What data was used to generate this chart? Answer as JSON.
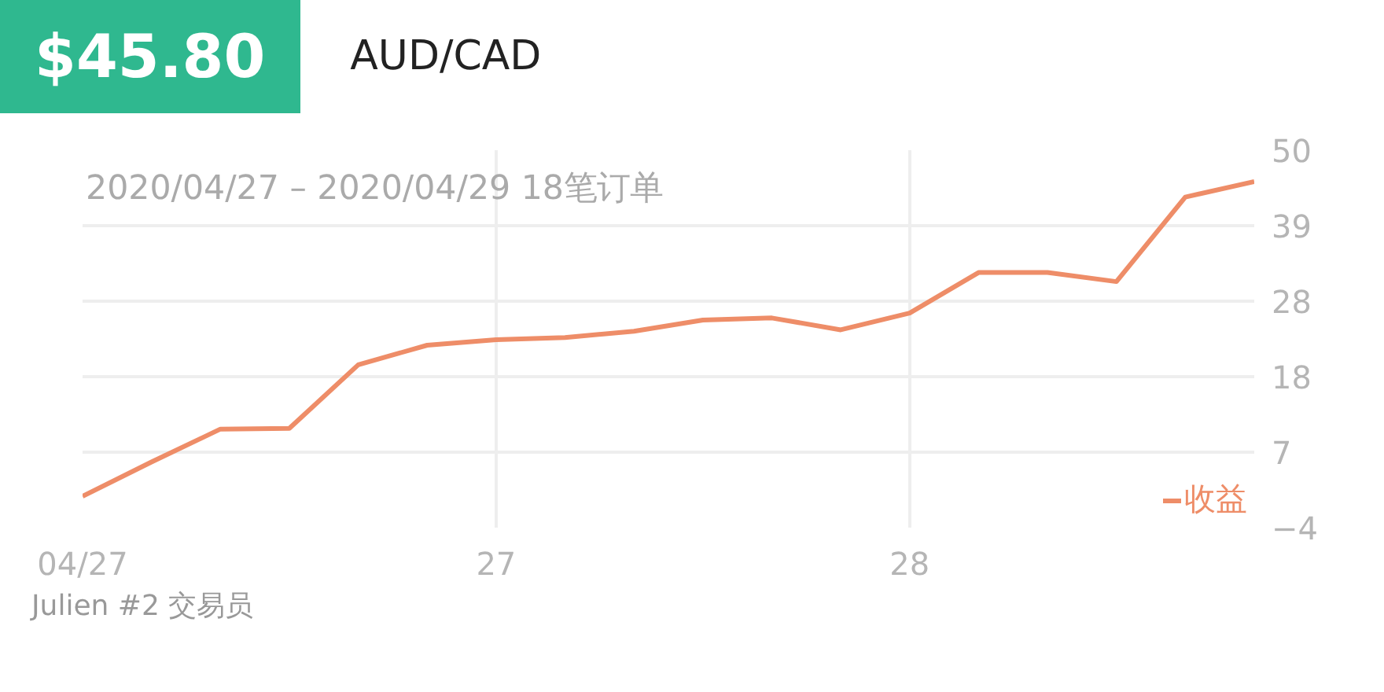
{
  "chart_data": {
    "type": "line",
    "title": "$45.80",
    "subtitle": "AUD/CAD",
    "annotations": [
      "2020/04/27 – 2020/04/29 18笔订单",
      "Julien #2 交易员"
    ],
    "categories": [
      "04/27",
      null,
      null,
      null,
      null,
      null,
      "27",
      null,
      null,
      null,
      null,
      null,
      "28",
      null,
      null,
      null,
      null,
      null
    ],
    "series": [
      {
        "name": "收益",
        "color": "#ee8d68",
        "values": [
          0.5,
          5.4,
          10.1,
          10.2,
          19.3,
          22.1,
          22.9,
          23.2,
          24.1,
          25.7,
          26.0,
          24.3,
          26.7,
          32.5,
          32.5,
          31.2,
          43.3,
          45.5
        ]
      }
    ],
    "ylim": [
      -4,
      50
    ],
    "yticks": [
      {
        "value": -4,
        "label": "−4"
      },
      {
        "value": 6.8,
        "label": "7"
      },
      {
        "value": 17.6,
        "label": "18"
      },
      {
        "value": 28.4,
        "label": "28"
      },
      {
        "value": 39.2,
        "label": "39"
      },
      {
        "value": 50,
        "label": "50"
      }
    ],
    "grid": true,
    "legend": "bottom right",
    "line_style": "solid",
    "marker": "none"
  }
}
